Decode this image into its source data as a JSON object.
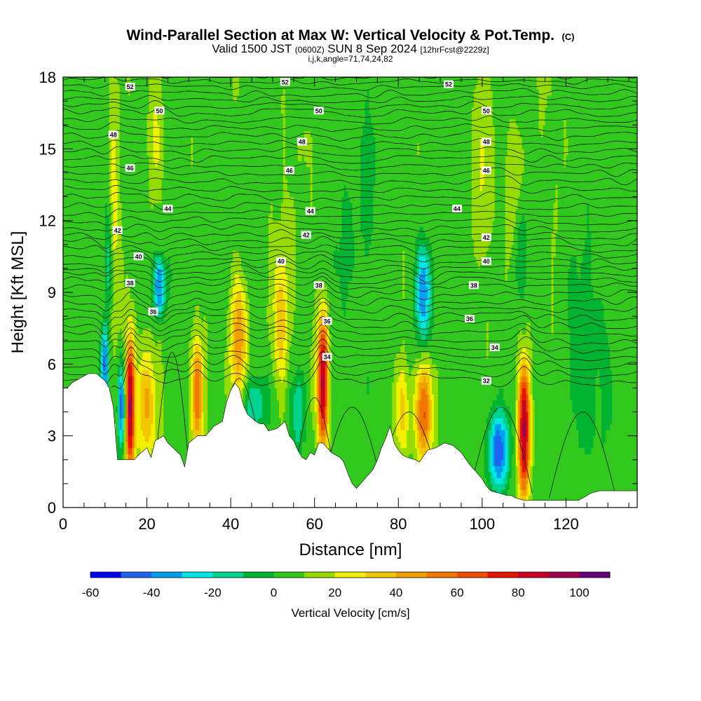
{
  "chart_data": {
    "type": "heatmap",
    "title": "Wind-Parallel Section at Max W: Vertical Velocity & Pot.Temp.",
    "title_mark": "(C)",
    "subtitle_parts": [
      "Valid 1500 JST ",
      "(0600Z)",
      " SUN 8 Sep 2024 ",
      "[12hrFcst@2229z]"
    ],
    "subtitle2": "i,j,k,angle=71,74,24,82",
    "xlabel": "Distance [nm]",
    "ylabel": "Height [Kft MSL]",
    "xlim": [
      0,
      137
    ],
    "ylim": [
      0,
      18
    ],
    "x_ticks": [
      "0",
      "20",
      "40",
      "60",
      "80",
      "100",
      "120"
    ],
    "y_ticks": [
      "0",
      "3",
      "6",
      "9",
      "12",
      "15",
      "18"
    ],
    "colorbar": {
      "label": "Vertical Velocity [cm/s]",
      "range": [
        -60,
        110
      ],
      "step": 10,
      "tick_labels": [
        "-60",
        "-40",
        "-20",
        "0",
        "20",
        "40",
        "60",
        "80",
        "100"
      ],
      "colors": [
        "#0000f0",
        "#1e64f0",
        "#00a0f0",
        "#00e6e6",
        "#00d290",
        "#00b432",
        "#32c81e",
        "#96dc00",
        "#f0f000",
        "#f0c800",
        "#f0a000",
        "#f07800",
        "#f04b00",
        "#e61400",
        "#c80028",
        "#a00050",
        "#640078"
      ]
    },
    "terrain": [
      [
        0,
        5
      ],
      [
        1,
        5
      ],
      [
        2,
        5.2
      ],
      [
        4,
        5.4
      ],
      [
        6,
        5.6
      ],
      [
        8,
        5.6
      ],
      [
        10,
        5.3
      ],
      [
        11,
        5.0
      ],
      [
        12,
        4.2
      ],
      [
        13,
        2.0
      ],
      [
        15,
        2.0
      ],
      [
        17,
        2.0
      ],
      [
        18,
        2.2
      ],
      [
        20,
        2.5
      ],
      [
        21,
        2.1
      ],
      [
        22,
        2.8
      ],
      [
        24,
        3.0
      ],
      [
        25,
        2.7
      ],
      [
        28,
        2.2
      ],
      [
        29,
        1.7
      ],
      [
        30,
        2.7
      ],
      [
        32,
        3.0
      ],
      [
        34,
        3.0
      ],
      [
        36,
        3.4
      ],
      [
        38,
        3.6
      ],
      [
        39,
        4.4
      ],
      [
        40,
        4.9
      ],
      [
        41,
        5.2
      ],
      [
        42,
        5.0
      ],
      [
        43,
        4.3
      ],
      [
        44,
        3.9
      ],
      [
        46,
        3.6
      ],
      [
        47,
        3.5
      ],
      [
        48,
        3.5
      ],
      [
        49,
        3.2
      ],
      [
        51,
        3.3
      ],
      [
        53,
        3.6
      ],
      [
        54,
        3.0
      ],
      [
        55,
        2.8
      ],
      [
        56,
        2.4
      ],
      [
        57,
        2.1
      ],
      [
        58,
        2.0
      ],
      [
        59,
        2.3
      ],
      [
        60,
        2.2
      ],
      [
        61,
        2.7
      ],
      [
        62,
        2.7
      ],
      [
        64,
        2.3
      ],
      [
        66,
        2.1
      ],
      [
        67,
        1.9
      ],
      [
        68,
        1.4
      ],
      [
        69,
        1.0
      ],
      [
        70,
        0.8
      ],
      [
        71,
        1.0
      ],
      [
        72,
        1.2
      ],
      [
        74,
        1.6
      ],
      [
        75,
        2.0
      ],
      [
        76,
        2.5
      ],
      [
        77,
        2.9
      ],
      [
        78,
        3.4
      ],
      [
        79,
        2.7
      ],
      [
        80,
        2.4
      ],
      [
        81,
        2.2
      ],
      [
        82,
        2.1
      ],
      [
        84,
        2.0
      ],
      [
        85,
        1.9
      ],
      [
        87,
        2.4
      ],
      [
        89,
        2.5
      ],
      [
        90,
        2.6
      ],
      [
        91,
        2.7
      ],
      [
        93,
        2.6
      ],
      [
        95,
        2.3
      ],
      [
        97,
        1.8
      ],
      [
        98,
        1.6
      ],
      [
        99,
        1.4
      ],
      [
        100,
        1.2
      ],
      [
        101,
        0.9
      ],
      [
        102,
        0.7
      ],
      [
        104,
        0.6
      ],
      [
        106,
        0.5
      ],
      [
        107,
        0.5
      ],
      [
        108,
        0.4
      ],
      [
        109,
        0.35
      ],
      [
        110,
        0.3
      ],
      [
        113,
        0.3
      ],
      [
        116,
        0.3
      ],
      [
        119,
        0.3
      ],
      [
        121,
        0.3
      ],
      [
        123,
        0.3
      ],
      [
        124,
        0.4
      ],
      [
        125,
        0.5
      ],
      [
        126,
        0.6
      ],
      [
        128,
        0.7
      ],
      [
        130,
        0.7
      ],
      [
        132,
        0.7
      ],
      [
        134,
        0.7
      ],
      [
        136,
        0.7
      ],
      [
        137,
        0.7
      ]
    ],
    "updrafts": [
      {
        "x": 16,
        "zb": 1.5,
        "zt": 7.0,
        "w": 85,
        "sx": 0.8
      },
      {
        "x": 20,
        "zb": 2.0,
        "zt": 6.5,
        "w": 35,
        "sx": 1.4
      },
      {
        "x": 12,
        "zb": 8.0,
        "zt": 18.0,
        "w": 22,
        "sx": 0.9
      },
      {
        "x": 22,
        "zb": 13.0,
        "zt": 18.0,
        "w": 15,
        "sx": 1.2
      },
      {
        "x": 32,
        "zb": 2.5,
        "zt": 7.0,
        "w": 55,
        "sx": 0.9
      },
      {
        "x": 42,
        "zb": 4.5,
        "zt": 9.5,
        "w": 42,
        "sx": 1.5
      },
      {
        "x": 52,
        "zb": 5.0,
        "zt": 11.0,
        "w": 30,
        "sx": 1.3
      },
      {
        "x": 62,
        "zb": 2.5,
        "zt": 8.0,
        "w": 88,
        "sx": 0.9
      },
      {
        "x": 81,
        "zb": 2.0,
        "zt": 6.0,
        "w": 28,
        "sx": 1.3
      },
      {
        "x": 86,
        "zb": 2.0,
        "zt": 6.0,
        "w": 55,
        "sx": 1.4
      },
      {
        "x": 110,
        "zb": 0.5,
        "zt": 6.0,
        "w": 88,
        "sx": 1.0
      },
      {
        "x": 108,
        "zb": 9.0,
        "zt": 16.0,
        "w": 15,
        "sx": 1.5
      },
      {
        "x": 100,
        "zb": 10.0,
        "zt": 18.0,
        "w": 12,
        "sx": 2.0
      }
    ],
    "downdrafts": [
      {
        "x": 10,
        "zb": 4.5,
        "zt": 7.5,
        "w": -50,
        "sx": 0.7
      },
      {
        "x": 14,
        "zb": 2.5,
        "zt": 6.0,
        "w": -55,
        "sx": 0.6
      },
      {
        "x": 11,
        "zb": 8.0,
        "zt": 13.0,
        "w": -25,
        "sx": 0.8
      },
      {
        "x": 23,
        "zb": 8.0,
        "zt": 10.5,
        "w": -50,
        "sx": 1.0
      },
      {
        "x": 46,
        "zb": 3.0,
        "zt": 5.5,
        "w": -25,
        "sx": 2.0
      },
      {
        "x": 56,
        "zb": 2.5,
        "zt": 5.5,
        "w": -22,
        "sx": 1.2
      },
      {
        "x": 86,
        "zb": 7.0,
        "zt": 11.0,
        "w": -45,
        "sx": 1.3
      },
      {
        "x": 104,
        "zb": 0.8,
        "zt": 4.0,
        "w": -50,
        "sx": 1.8
      },
      {
        "x": 109,
        "zb": 8.5,
        "zt": 13.0,
        "w": -22,
        "sx": 1.2
      },
      {
        "x": 70,
        "zb": 8.0,
        "zt": 18.0,
        "w": -8,
        "sx": 4.0
      },
      {
        "x": 125,
        "zb": 2.0,
        "zt": 10.0,
        "w": -10,
        "sx": 4.0
      }
    ],
    "isentropes": {
      "z_at": [
        [
          32,
          5.3
        ],
        [
          34,
          6.7
        ],
        [
          36,
          8.0
        ],
        [
          38,
          9.3
        ],
        [
          40,
          10.3
        ],
        [
          42,
          11.4
        ],
        [
          44,
          12.6
        ],
        [
          46,
          14.0
        ],
        [
          48,
          15.2
        ],
        [
          50,
          16.5
        ],
        [
          52,
          17.6
        ],
        [
          54,
          18.5
        ]
      ],
      "labels": [
        {
          "text": "52",
          "x": 16,
          "z": 17.6
        },
        {
          "text": "50",
          "x": 23,
          "z": 16.6
        },
        {
          "text": "48",
          "x": 12,
          "z": 15.6
        },
        {
          "text": "46",
          "x": 16,
          "z": 14.2
        },
        {
          "text": "44",
          "x": 25,
          "z": 12.5
        },
        {
          "text": "42",
          "x": 13,
          "z": 11.6
        },
        {
          "text": "40",
          "x": 18,
          "z": 10.5
        },
        {
          "text": "38",
          "x": 16,
          "z": 9.4
        },
        {
          "text": "36",
          "x": 21.5,
          "z": 8.2
        },
        {
          "text": "52",
          "x": 53,
          "z": 17.8
        },
        {
          "text": "50",
          "x": 61,
          "z": 16.6
        },
        {
          "text": "48",
          "x": 57,
          "z": 15.3
        },
        {
          "text": "46",
          "x": 54,
          "z": 14.1
        },
        {
          "text": "44",
          "x": 59,
          "z": 12.4
        },
        {
          "text": "42",
          "x": 58,
          "z": 11.4
        },
        {
          "text": "40",
          "x": 52,
          "z": 10.3
        },
        {
          "text": "38",
          "x": 61,
          "z": 9.3
        },
        {
          "text": "36",
          "x": 63,
          "z": 7.8
        },
        {
          "text": "34",
          "x": 63,
          "z": 6.3
        },
        {
          "text": "52",
          "x": 92,
          "z": 17.7
        },
        {
          "text": "50",
          "x": 101,
          "z": 16.6
        },
        {
          "text": "48",
          "x": 101,
          "z": 15.3
        },
        {
          "text": "46",
          "x": 101,
          "z": 14.1
        },
        {
          "text": "44",
          "x": 94,
          "z": 12.5
        },
        {
          "text": "42",
          "x": 101,
          "z": 11.3
        },
        {
          "text": "40",
          "x": 101,
          "z": 10.3
        },
        {
          "text": "38",
          "x": 98,
          "z": 9.3
        },
        {
          "text": "36",
          "x": 97,
          "z": 7.9
        },
        {
          "text": "34",
          "x": 103,
          "z": 6.7
        },
        {
          "text": "32",
          "x": 101,
          "z": 5.3
        }
      ]
    }
  }
}
